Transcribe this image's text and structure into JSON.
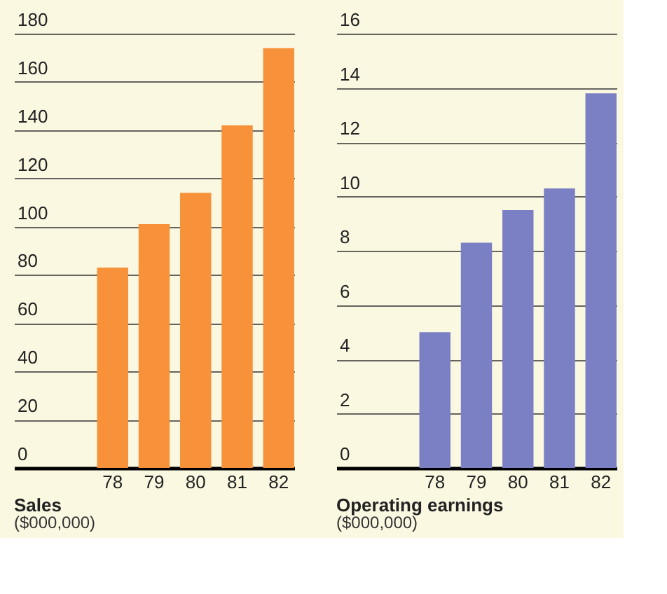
{
  "chart_data": [
    {
      "type": "bar",
      "title": "Sales",
      "subtitle": "($000,000)",
      "categories": [
        "78",
        "79",
        "80",
        "81",
        "82"
      ],
      "values": [
        83,
        101,
        114,
        142,
        174
      ],
      "color": "#f7923a",
      "ylim": [
        0,
        180
      ],
      "yticks": [
        0,
        20,
        40,
        60,
        80,
        100,
        120,
        140,
        160,
        180
      ],
      "grid": "y"
    },
    {
      "type": "bar",
      "title": "Operating earnings",
      "subtitle": "($000,000)",
      "categories": [
        "78",
        "79",
        "80",
        "81",
        "82"
      ],
      "values": [
        5.0,
        8.3,
        9.5,
        10.3,
        13.8
      ],
      "color": "#7b80c4",
      "ylim": [
        0,
        16
      ],
      "yticks": [
        0,
        2,
        4,
        6,
        8,
        10,
        12,
        14,
        16
      ],
      "grid": "y"
    }
  ]
}
